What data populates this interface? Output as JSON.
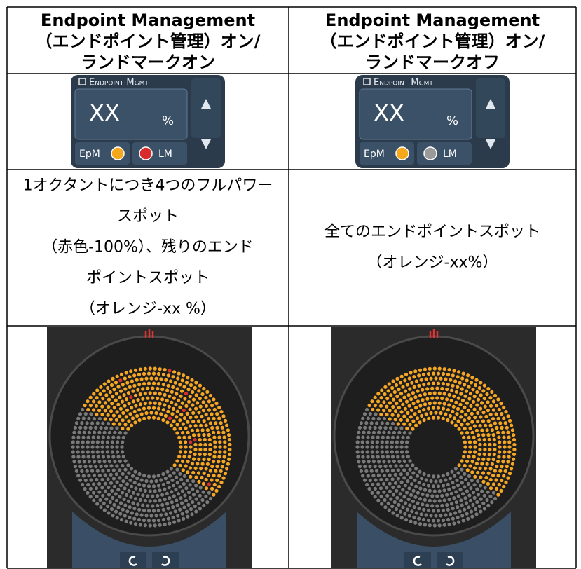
{
  "table": {
    "header": [
      {
        "lines": [
          "Endpoint Management",
          "（エンドポイント管理）オン/",
          "ランドマークオン"
        ]
      },
      {
        "lines": [
          "Endpoint Management",
          "（エンドポイント管理）オン/",
          "ランドマークオフ"
        ]
      }
    ],
    "widgets": [
      {
        "title": "Endpoint Mgmt",
        "value": "XX",
        "unit": "%",
        "epm": "EpM",
        "lm": "LM",
        "lm_color": "#d92b2b"
      },
      {
        "title": "Endpoint Mgmt",
        "value": "XX",
        "unit": "%",
        "epm": "EpM",
        "lm": "LM",
        "lm_color": "#9a9a9a"
      }
    ],
    "descriptions": [
      {
        "lines": [
          "1オクタントにつき4つのフルパワー",
          "スポット",
          "（赤色-100%）、残りのエンド",
          "ポイントスポット",
          "（オレンジ-xx %）"
        ]
      },
      {
        "lines": [
          "全てのエンドポイントスポット",
          "（オレンジ-xx%）"
        ]
      }
    ],
    "spots": [
      {
        "red": true
      },
      {
        "red": false
      }
    ]
  }
}
